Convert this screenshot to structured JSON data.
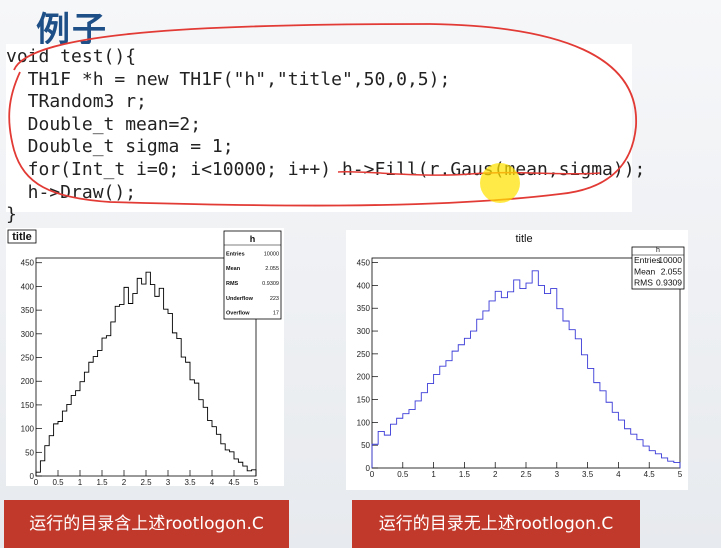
{
  "slide": {
    "title": "例子"
  },
  "code": {
    "lines": [
      "void test(){",
      "  TH1F *h = new TH1F(\"h\",\"title\",50,0,5);",
      "  TRandom3 r;",
      "  Double_t mean=2;",
      "  Double_t sigma = 1;",
      "  for(Int_t i=0; i<10000; i++) h->Fill(r.Gaus(mean,sigma));",
      "  h->Draw();",
      "}"
    ]
  },
  "captions": {
    "left": "运行的目录含上述rootlogon.C",
    "right": "运行的目录无上述rootlogon.C"
  },
  "colors": {
    "title_blue": "#1e4f86",
    "annotation_red": "#e23a35",
    "caption_red": "#c0392b",
    "left_histogram_line": "#000000",
    "right_histogram_line": "#3a3ad8",
    "cursor_highlight": "#ffe200"
  },
  "chart_data": [
    {
      "type": "histogram",
      "title": "title",
      "title_style": "boxed",
      "xlim": [
        0,
        5
      ],
      "ylim": [
        0,
        460
      ],
      "x_ticks": [
        "0",
        "0.5",
        "1",
        "1.5",
        "2",
        "2.5",
        "3",
        "3.5",
        "4",
        "4.5",
        "5"
      ],
      "y_ticks": [
        "0",
        "50",
        "100",
        "150",
        "200",
        "250",
        "300",
        "350",
        "400",
        "450"
      ],
      "bin_edges_start": 0,
      "bin_width": 0.1,
      "values": [
        8,
        32,
        64,
        85,
        110,
        115,
        137,
        151,
        170,
        180,
        199,
        219,
        240,
        252,
        265,
        291,
        296,
        325,
        358,
        362,
        398,
        364,
        385,
        417,
        405,
        430,
        404,
        379,
        396,
        352,
        343,
        302,
        290,
        251,
        240,
        203,
        196,
        161,
        145,
        117,
        104,
        88,
        68,
        55,
        51,
        36,
        29,
        21,
        11,
        13
      ],
      "line_color": "#000000",
      "stats": {
        "name": "h",
        "rows": [
          [
            "Entries",
            "10000"
          ],
          [
            "Mean",
            "2.055"
          ],
          [
            "RMS",
            "0.9309"
          ],
          [
            "Underflow",
            "223"
          ],
          [
            "Overflow",
            "17"
          ]
        ]
      },
      "grid": false
    },
    {
      "type": "histogram",
      "title": "title",
      "title_style": "plain",
      "xlim": [
        0,
        5
      ],
      "ylim": [
        0,
        460
      ],
      "x_ticks": [
        "0",
        "0.5",
        "1",
        "1.5",
        "2",
        "2.5",
        "3",
        "3.5",
        "4",
        "4.5",
        "5"
      ],
      "y_ticks": [
        "0",
        "50",
        "100",
        "150",
        "200",
        "250",
        "300",
        "350",
        "400",
        "450"
      ],
      "bin_edges_start": 0,
      "bin_width": 0.1,
      "values": [
        52,
        80,
        72,
        96,
        109,
        119,
        128,
        147,
        165,
        185,
        205,
        223,
        235,
        256,
        270,
        284,
        300,
        326,
        344,
        366,
        387,
        373,
        386,
        412,
        393,
        405,
        432,
        400,
        382,
        393,
        349,
        322,
        303,
        283,
        248,
        218,
        187,
        169,
        144,
        122,
        105,
        86,
        74,
        62,
        48,
        38,
        31,
        22,
        15,
        12
      ],
      "line_color": "#3a3ad8",
      "stats": {
        "name": "h",
        "rows": [
          [
            "Entries",
            "10000"
          ],
          [
            "Mean",
            "2.055"
          ],
          [
            "RMS",
            "0.9309"
          ]
        ]
      },
      "grid": false
    }
  ]
}
